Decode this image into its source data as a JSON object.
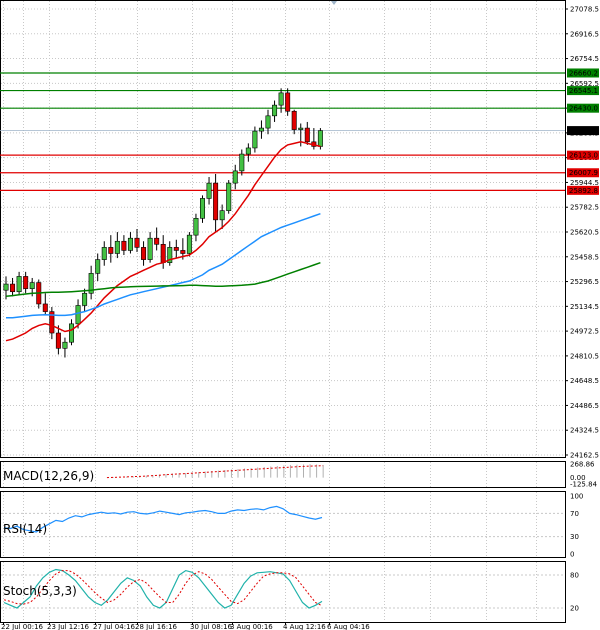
{
  "chart_data": [
    {
      "type": "candlestick",
      "panel": "price",
      "ylim": [
        24162.5,
        27078.5
      ],
      "y_ticks": [
        "27078.5",
        "26916.5",
        "26754.5",
        "26592.5",
        "26430.5",
        "26268.5",
        "26106.5",
        "25944.5",
        "25782.5",
        "25620.5",
        "25458.5",
        "25296.5",
        "25134.5",
        "24972.5",
        "24810.5",
        "24648.5",
        "24486.5",
        "24324.5",
        "24162.5"
      ],
      "x_ticks": [
        "22 Jul 00:16",
        "23 Jul 12:16",
        "27 Jul 04:16",
        "28 Jul 16:16",
        "30 Jul 08:16",
        "3 Aug 00:16",
        "4 Aug 12:16",
        "6 Aug 04:16"
      ],
      "grid": true,
      "candles": [
        [
          25240,
          25330,
          25180,
          25280
        ],
        [
          25280,
          25320,
          25200,
          25230
        ],
        [
          25230,
          25360,
          25210,
          25330
        ],
        [
          25330,
          25360,
          25220,
          25250
        ],
        [
          25250,
          25320,
          25200,
          25290
        ],
        [
          25290,
          25310,
          25120,
          25150
        ],
        [
          25150,
          25220,
          25080,
          25100
        ],
        [
          25100,
          25130,
          24920,
          24960
        ],
        [
          24960,
          25010,
          24820,
          24860
        ],
        [
          24860,
          24930,
          24800,
          24900
        ],
        [
          24900,
          25050,
          24880,
          25020
        ],
        [
          25020,
          25180,
          24990,
          25140
        ],
        [
          25140,
          25250,
          25100,
          25220
        ],
        [
          25220,
          25400,
          25180,
          25350
        ],
        [
          25350,
          25480,
          25300,
          25440
        ],
        [
          25440,
          25560,
          25400,
          25520
        ],
        [
          25520,
          25600,
          25420,
          25480
        ],
        [
          25480,
          25620,
          25450,
          25560
        ],
        [
          25560,
          25600,
          25470,
          25500
        ],
        [
          25500,
          25620,
          25480,
          25580
        ],
        [
          25580,
          25640,
          25490,
          25520
        ],
        [
          25520,
          25560,
          25400,
          25440
        ],
        [
          25440,
          25620,
          25420,
          25580
        ],
        [
          25580,
          25650,
          25500,
          25540
        ],
        [
          25540,
          25600,
          25380,
          25420
        ],
        [
          25420,
          25560,
          25400,
          25520
        ],
        [
          25520,
          25570,
          25450,
          25500
        ],
        [
          25500,
          25580,
          25440,
          25480
        ],
        [
          25480,
          25620,
          25460,
          25600
        ],
        [
          25600,
          25740,
          25560,
          25710
        ],
        [
          25710,
          25860,
          25680,
          25840
        ],
        [
          25840,
          25980,
          25800,
          25940
        ],
        [
          25940,
          26000,
          25620,
          25700
        ],
        [
          25700,
          25800,
          25640,
          25760
        ],
        [
          25760,
          25960,
          25740,
          25940
        ],
        [
          25940,
          26060,
          25900,
          26020
        ],
        [
          26020,
          26160,
          25990,
          26130
        ],
        [
          26130,
          26200,
          26080,
          26170
        ],
        [
          26170,
          26310,
          26140,
          26280
        ],
        [
          26280,
          26350,
          26230,
          26300
        ],
        [
          26300,
          26420,
          26260,
          26380
        ],
        [
          26380,
          26480,
          26340,
          26450
        ],
        [
          26450,
          26560,
          26400,
          26530
        ],
        [
          26530,
          26560,
          26380,
          26410
        ],
        [
          26410,
          26420,
          26260,
          26290
        ],
        [
          26290,
          26330,
          26180,
          26300
        ],
        [
          26300,
          26340,
          26190,
          26210
        ],
        [
          26210,
          26300,
          26160,
          26180
        ],
        [
          26180,
          26300,
          26160,
          26283.5
        ]
      ],
      "series": [
        {
          "name": "MA fast",
          "color": "#e00000",
          "values": [
            24910,
            24920,
            24940,
            24960,
            24990,
            25010,
            25020,
            25010,
            24990,
            24970,
            24980,
            25010,
            25050,
            25090,
            25140,
            25190,
            25230,
            25270,
            25300,
            25330,
            25350,
            25370,
            25390,
            25410,
            25420,
            25440,
            25450,
            25460,
            25470,
            25500,
            25540,
            25590,
            25620,
            25650,
            25690,
            25740,
            25800,
            25860,
            25930,
            25990,
            26050,
            26110,
            26160,
            26190,
            26200,
            26210,
            26200,
            26190,
            26180
          ]
        },
        {
          "name": "MA medium",
          "color": "#1e90ff",
          "values": [
            25060,
            25060,
            25065,
            25070,
            25075,
            25078,
            25080,
            25078,
            25075,
            25075,
            25080,
            25090,
            25100,
            25115,
            25130,
            25150,
            25165,
            25180,
            25195,
            25210,
            25220,
            25230,
            25240,
            25250,
            25260,
            25270,
            25280,
            25290,
            25300,
            25320,
            25340,
            25370,
            25390,
            25410,
            25440,
            25470,
            25500,
            25530,
            25560,
            25590,
            25610,
            25630,
            25650,
            25665,
            25680,
            25695,
            25710,
            25725,
            25740
          ]
        },
        {
          "name": "MA slow",
          "color": "#008000",
          "values": [
            25200,
            25205,
            25210,
            25215,
            25220,
            25222,
            25225,
            25226,
            25227,
            25228,
            25230,
            25233,
            25236,
            25240,
            25245,
            25250,
            25255,
            25258,
            25260,
            25262,
            25264,
            25265,
            25266,
            25267,
            25268,
            25268,
            25269,
            25270,
            25272,
            25272,
            25270,
            25268,
            25266,
            25266,
            25268,
            25270,
            25272,
            25275,
            25280,
            25290,
            25300,
            25315,
            25330,
            25345,
            25360,
            25375,
            25390,
            25405,
            25420
          ]
        }
      ],
      "price_lines": [
        {
          "label": "26660.2",
          "value": 26660.2,
          "color": "#008000"
        },
        {
          "label": "26545.1",
          "value": 26545.1,
          "color": "#008000"
        },
        {
          "label": "26430.0",
          "value": 26430.0,
          "color": "#008000"
        },
        {
          "label": "26123.0",
          "value": 26123.0,
          "color": "#e00000"
        },
        {
          "label": "26007.9",
          "value": 26007.9,
          "color": "#e00000"
        },
        {
          "label": "25892.8",
          "value": 25892.8,
          "color": "#e00000"
        }
      ],
      "current_price": {
        "label": "26283.5",
        "value": 26283.5
      }
    },
    {
      "type": "bar",
      "panel": "macd",
      "title": "MACD(12,26,9)",
      "y_ticks": [
        "268.86",
        "0.00",
        "-125.84"
      ],
      "ylim": [
        -125.84,
        268.86
      ],
      "values": [
        5,
        10,
        15,
        20,
        25,
        30,
        40,
        50,
        60,
        70,
        80,
        85,
        90,
        100,
        110,
        120,
        130,
        140,
        150,
        160,
        170,
        180,
        190,
        200,
        210,
        220,
        230,
        240,
        250,
        255,
        260,
        265,
        260,
        250
      ],
      "signal": [
        0,
        5,
        10,
        15,
        20,
        25,
        32,
        40,
        48,
        57,
        65,
        73,
        80,
        88,
        96,
        104,
        112,
        120,
        128,
        136,
        144,
        152,
        160,
        168,
        176,
        184,
        192,
        200,
        208,
        215,
        222,
        228,
        232,
        235
      ]
    },
    {
      "type": "line",
      "panel": "rsi",
      "title": "RSI(14)",
      "y_ticks": [
        "100",
        "70",
        "30",
        "0"
      ],
      "ylim": [
        0,
        100
      ],
      "values": [
        45,
        44,
        48,
        42,
        40,
        38,
        46,
        52,
        58,
        56,
        62,
        66,
        64,
        68,
        70,
        72,
        70,
        71,
        69,
        72,
        73,
        70,
        69,
        71,
        74,
        72,
        70,
        68,
        71,
        72,
        74,
        75,
        73,
        70,
        70,
        74,
        76,
        75,
        77,
        78,
        76,
        80,
        82,
        78,
        70,
        68,
        65,
        62,
        60,
        63
      ]
    },
    {
      "type": "line",
      "panel": "stochastic",
      "title": "Stoch(5,3,3)",
      "y_ticks": [
        "80",
        "20"
      ],
      "ylim": [
        0,
        100
      ],
      "main": [
        30,
        25,
        20,
        30,
        40,
        60,
        75,
        85,
        90,
        88,
        80,
        70,
        55,
        40,
        30,
        25,
        35,
        50,
        65,
        75,
        70,
        60,
        40,
        25,
        20,
        30,
        55,
        80,
        88,
        85,
        75,
        60,
        45,
        30,
        20,
        25,
        45,
        65,
        78,
        84,
        85,
        86,
        84,
        82,
        70,
        50,
        30,
        20,
        25,
        32
      ],
      "signal": [
        35,
        32,
        28,
        27,
        30,
        40,
        55,
        70,
        82,
        88,
        88,
        82,
        72,
        60,
        48,
        38,
        30,
        35,
        45,
        58,
        68,
        72,
        65,
        52,
        40,
        30,
        30,
        45,
        65,
        80,
        86,
        82,
        72,
        58,
        45,
        32,
        28,
        35,
        50,
        65,
        78,
        82,
        84,
        84,
        82,
        75,
        60,
        45,
        30,
        24
      ]
    }
  ]
}
